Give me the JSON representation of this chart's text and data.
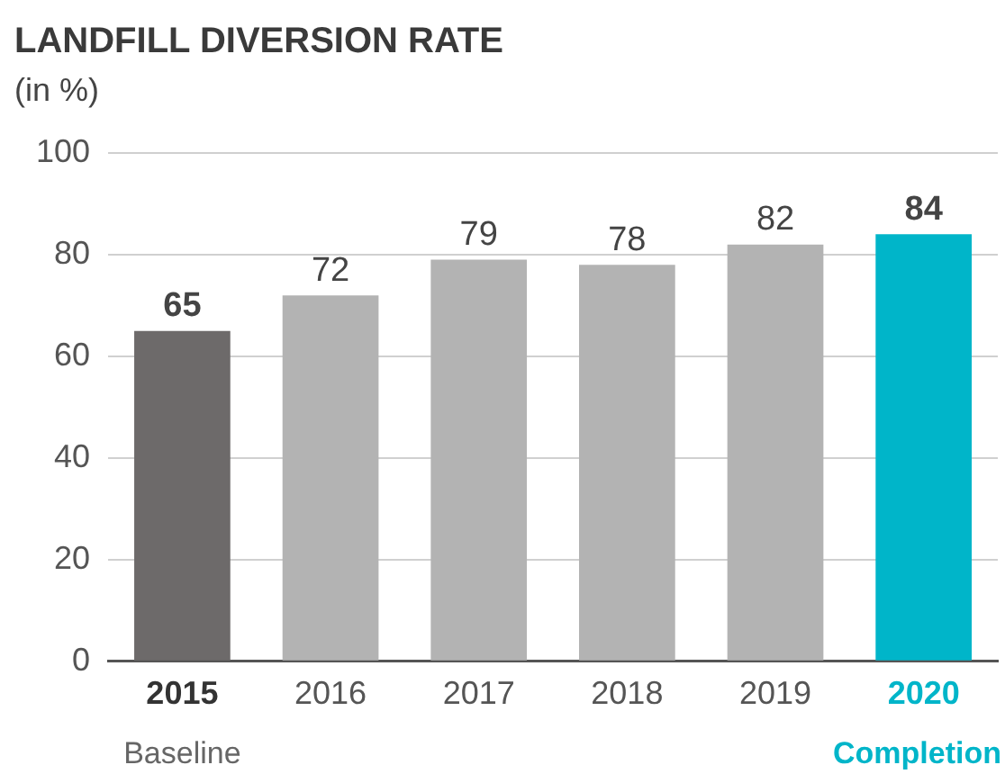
{
  "chart_data": {
    "type": "bar",
    "title": "LANDFILL DIVERSION RATE",
    "subtitle": "(in %)",
    "categories": [
      "2015",
      "2016",
      "2017",
      "2018",
      "2019",
      "2020"
    ],
    "values": [
      65,
      72,
      79,
      78,
      82,
      84
    ],
    "colors": [
      "#6d6a6a",
      "#b3b3b3",
      "#b3b3b3",
      "#b3b3b3",
      "#b3b3b3",
      "#00b5c9"
    ],
    "ylim": [
      0,
      100
    ],
    "yticks": [
      0,
      20,
      40,
      60,
      80,
      100
    ],
    "grid": "y",
    "legend": false,
    "data_labels": true,
    "annotations": [
      "Baseline",
      "Completion"
    ]
  }
}
